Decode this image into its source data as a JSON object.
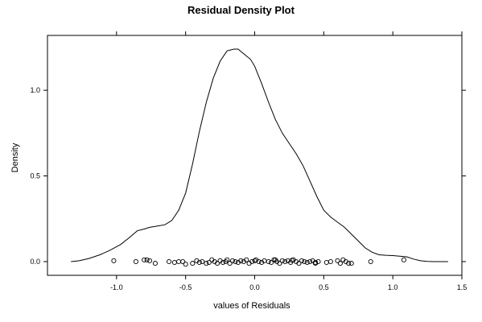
{
  "chart_data": {
    "type": "line",
    "title": "Residual Density Plot",
    "xlabel": "values of Residuals",
    "ylabel": "Density",
    "xlim": [
      -1.5,
      1.5
    ],
    "ylim": [
      -0.08,
      1.32
    ],
    "x_ticks": [
      {
        "value": -1.0,
        "label": "-1.0"
      },
      {
        "value": -0.5,
        "label": "-0.5"
      },
      {
        "value": 0.0,
        "label": "0.0"
      },
      {
        "value": 0.5,
        "label": "0.5"
      },
      {
        "value": 1.0,
        "label": "1.0"
      },
      {
        "value": 1.5,
        "label": "1.5"
      }
    ],
    "y_ticks": [
      {
        "value": 0.0,
        "label": "0.0"
      },
      {
        "value": 0.5,
        "label": "0.5"
      },
      {
        "value": 1.0,
        "label": "1.0"
      }
    ],
    "grid": false,
    "series": [
      {
        "type": "line",
        "color": "#000000",
        "x": [
          -1.33,
          -1.27,
          -1.2,
          -1.12,
          -1.05,
          -0.97,
          -0.9,
          -0.85,
          -0.8,
          -0.76,
          -0.72,
          -0.65,
          -0.6,
          -0.55,
          -0.5,
          -0.45,
          -0.4,
          -0.35,
          -0.3,
          -0.25,
          -0.2,
          -0.15,
          -0.12,
          -0.09,
          -0.06,
          -0.03,
          0.0,
          0.05,
          0.1,
          0.15,
          0.2,
          0.25,
          0.3,
          0.35,
          0.4,
          0.45,
          0.5,
          0.55,
          0.6,
          0.65,
          0.7,
          0.75,
          0.8,
          0.85,
          0.9,
          0.95,
          1.0,
          1.05,
          1.1,
          1.15,
          1.2,
          1.25,
          1.3,
          1.35,
          1.4
        ],
        "y": [
          0.0,
          0.005,
          0.018,
          0.04,
          0.065,
          0.1,
          0.145,
          0.18,
          0.19,
          0.2,
          0.205,
          0.215,
          0.24,
          0.3,
          0.4,
          0.57,
          0.76,
          0.93,
          1.07,
          1.17,
          1.23,
          1.24,
          1.24,
          1.22,
          1.2,
          1.18,
          1.14,
          1.04,
          0.93,
          0.83,
          0.75,
          0.69,
          0.63,
          0.56,
          0.47,
          0.38,
          0.3,
          0.26,
          0.23,
          0.2,
          0.16,
          0.12,
          0.08,
          0.055,
          0.04,
          0.037,
          0.035,
          0.032,
          0.028,
          0.015,
          0.005,
          0.001,
          0.0,
          0.0,
          0.0
        ]
      },
      {
        "type": "scatter",
        "marker": "open-circle",
        "color": "#000000",
        "x": [
          -1.02,
          -0.86,
          -0.8,
          -0.78,
          -0.76,
          -0.72,
          -0.62,
          -0.58,
          -0.55,
          -0.52,
          -0.5,
          -0.45,
          -0.42,
          -0.4,
          -0.38,
          -0.35,
          -0.33,
          -0.31,
          -0.29,
          -0.27,
          -0.25,
          -0.23,
          -0.21,
          -0.2,
          -0.18,
          -0.16,
          -0.14,
          -0.12,
          -0.1,
          -0.08,
          -0.06,
          -0.04,
          -0.02,
          0.0,
          0.01,
          0.03,
          0.05,
          0.07,
          0.1,
          0.12,
          0.14,
          0.16,
          0.18,
          0.2,
          0.22,
          0.24,
          0.26,
          0.28,
          0.3,
          0.32,
          0.34,
          0.36,
          0.38,
          0.4,
          0.42,
          0.44,
          0.46,
          0.52,
          0.55,
          0.6,
          0.62,
          0.64,
          0.68,
          0.7,
          0.84,
          1.08,
          0.15,
          0.27,
          0.44,
          0.66
        ],
        "y": [
          0.005,
          0.0,
          0.01,
          0.01,
          0.005,
          -0.01,
          0.0,
          -0.005,
          0.0,
          0.0,
          -0.015,
          -0.01,
          0.005,
          -0.005,
          0.0,
          -0.01,
          -0.005,
          0.01,
          0.0,
          -0.01,
          0.005,
          -0.005,
          0.0,
          0.01,
          -0.01,
          0.005,
          0.0,
          -0.005,
          0.005,
          0.0,
          0.01,
          -0.01,
          0.0,
          0.005,
          0.01,
          0.0,
          -0.005,
          0.005,
          0.0,
          -0.005,
          0.01,
          0.0,
          -0.01,
          0.005,
          0.0,
          0.005,
          -0.005,
          0.01,
          0.0,
          -0.01,
          0.005,
          0.0,
          -0.005,
          0.0,
          0.005,
          -0.01,
          0.0,
          -0.005,
          0.0,
          0.005,
          -0.01,
          0.01,
          -0.01,
          -0.01,
          0.0,
          0.01,
          0.01,
          0.008,
          -0.005,
          0.0
        ]
      }
    ]
  }
}
